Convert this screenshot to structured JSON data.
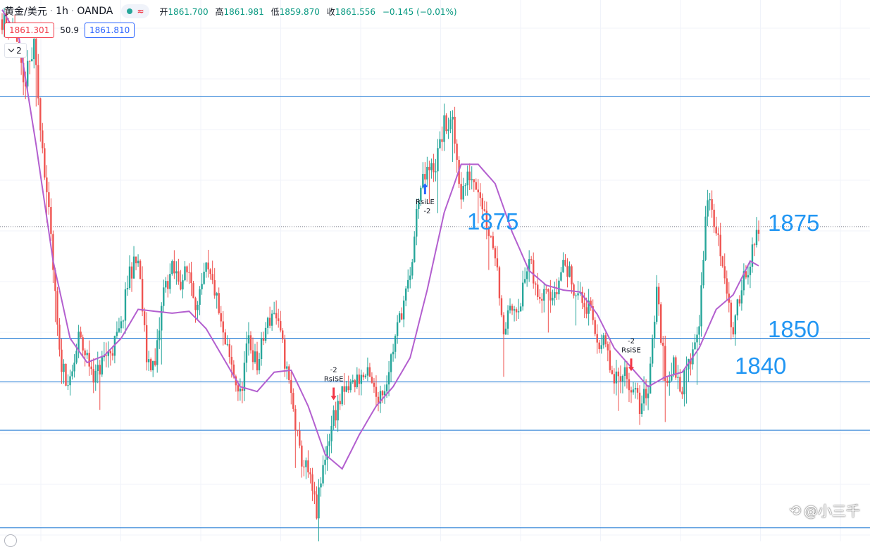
{
  "header": {
    "symbol": "黄金/美元",
    "interval": "1h",
    "broker": "OANDA",
    "status_icon": "wave-icon",
    "open_label": "开",
    "open": "1861.700",
    "high_label": "高",
    "high": "1861.981",
    "low_label": "低",
    "low": "1859.870",
    "close_label": "收",
    "close": "1861.556",
    "change": "−0.145 (−0.01%)"
  },
  "quote": {
    "sell": "1861.301",
    "spread": "50.9",
    "buy": "1861.810"
  },
  "indicator_toggle": {
    "count": "2"
  },
  "watermark": "@小三千",
  "colors": {
    "up": "#26a69a",
    "down": "#ef5350",
    "ma": "#b35fcf",
    "level_line": "#1976d2",
    "level_text": "#2196f3",
    "signal_sell": "#f23645",
    "signal_buy": "#2962ff"
  },
  "chart_data": {
    "type": "candlestick",
    "symbol": "XAU/USD",
    "timeframe": "1h",
    "y_range": [
      1829,
      1885
    ],
    "current_price": 1861.556,
    "horizontal_levels": [
      {
        "price": 1875,
        "label": "1875"
      },
      {
        "price": 1850,
        "label": "1850"
      },
      {
        "price": 1845.5,
        "label": "1840"
      },
      {
        "price": 1840.5,
        "label": ""
      },
      {
        "price": 1830.4,
        "label": ""
      }
    ],
    "level_labels": [
      {
        "text": "1875",
        "price": 1875
      },
      {
        "text": "1875",
        "price": 1875
      },
      {
        "text": "1850",
        "price": 1850
      },
      {
        "text": "1840",
        "price": 1845.5
      }
    ],
    "close_path": [
      [
        0,
        1883
      ],
      [
        6,
        1882
      ],
      [
        10,
        1876
      ],
      [
        15,
        1880
      ],
      [
        19,
        1870
      ],
      [
        23,
        1860
      ],
      [
        27,
        1848
      ],
      [
        32,
        1845
      ],
      [
        36,
        1850
      ],
      [
        40,
        1848
      ],
      [
        44,
        1846
      ],
      [
        48,
        1848
      ],
      [
        52,
        1849
      ],
      [
        56,
        1851
      ],
      [
        60,
        1857
      ],
      [
        64,
        1858
      ],
      [
        68,
        1848
      ],
      [
        72,
        1847
      ],
      [
        76,
        1855
      ],
      [
        80,
        1857
      ],
      [
        84,
        1856
      ],
      [
        88,
        1857
      ],
      [
        92,
        1853
      ],
      [
        96,
        1857
      ],
      [
        100,
        1855
      ],
      [
        104,
        1850
      ],
      [
        108,
        1847
      ],
      [
        112,
        1844
      ],
      [
        116,
        1850
      ],
      [
        120,
        1847
      ],
      [
        124,
        1851
      ],
      [
        128,
        1853
      ],
      [
        132,
        1849
      ],
      [
        136,
        1844
      ],
      [
        140,
        1838
      ],
      [
        144,
        1836
      ],
      [
        148,
        1832
      ],
      [
        152,
        1838
      ],
      [
        156,
        1842
      ],
      [
        160,
        1844
      ],
      [
        164,
        1845
      ],
      [
        168,
        1846
      ],
      [
        172,
        1846
      ],
      [
        176,
        1844
      ],
      [
        180,
        1845
      ],
      [
        184,
        1849
      ],
      [
        188,
        1853
      ],
      [
        192,
        1856
      ],
      [
        196,
        1865
      ],
      [
        200,
        1867
      ],
      [
        204,
        1868
      ],
      [
        208,
        1872
      ],
      [
        212,
        1872
      ],
      [
        216,
        1865
      ],
      [
        220,
        1867
      ],
      [
        224,
        1866
      ],
      [
        228,
        1862
      ],
      [
        232,
        1859
      ],
      [
        236,
        1851
      ],
      [
        240,
        1853
      ],
      [
        244,
        1854
      ],
      [
        248,
        1858
      ],
      [
        252,
        1854
      ],
      [
        256,
        1856
      ],
      [
        260,
        1854
      ],
      [
        264,
        1858
      ],
      [
        268,
        1856
      ],
      [
        272,
        1854
      ],
      [
        276,
        1853
      ],
      [
        280,
        1850
      ],
      [
        284,
        1849
      ],
      [
        288,
        1845
      ],
      [
        292,
        1847
      ],
      [
        296,
        1845
      ],
      [
        300,
        1843
      ],
      [
        304,
        1845
      ],
      [
        308,
        1855
      ],
      [
        312,
        1846
      ],
      [
        316,
        1847
      ],
      [
        320,
        1845
      ],
      [
        324,
        1848
      ],
      [
        328,
        1852
      ],
      [
        332,
        1865
      ],
      [
        336,
        1861
      ],
      [
        340,
        1857
      ],
      [
        344,
        1850
      ],
      [
        348,
        1856
      ],
      [
        352,
        1858
      ],
      [
        356,
        1861
      ]
    ],
    "moving_average": {
      "color": "#b35fcf",
      "values": [
        [
          0,
          1884
        ],
        [
          8,
          1881
        ],
        [
          16,
          1870
        ],
        [
          24,
          1858
        ],
        [
          32,
          1850
        ],
        [
          40,
          1847.5
        ],
        [
          48,
          1848.2
        ],
        [
          56,
          1850
        ],
        [
          64,
          1853
        ],
        [
          72,
          1852.8
        ],
        [
          80,
          1852.6
        ],
        [
          88,
          1852.8
        ],
        [
          96,
          1851
        ],
        [
          104,
          1848
        ],
        [
          112,
          1845
        ],
        [
          120,
          1844.5
        ],
        [
          128,
          1846.5
        ],
        [
          136,
          1846.7
        ],
        [
          144,
          1843
        ],
        [
          152,
          1838
        ],
        [
          160,
          1836.5
        ],
        [
          168,
          1840
        ],
        [
          176,
          1843
        ],
        [
          184,
          1845
        ],
        [
          192,
          1848
        ],
        [
          200,
          1855
        ],
        [
          208,
          1863
        ],
        [
          216,
          1868
        ],
        [
          224,
          1868
        ],
        [
          232,
          1866
        ],
        [
          240,
          1861
        ],
        [
          248,
          1857
        ],
        [
          256,
          1855.5
        ],
        [
          264,
          1855
        ],
        [
          272,
          1854.8
        ],
        [
          280,
          1852.5
        ],
        [
          288,
          1849
        ],
        [
          296,
          1847
        ],
        [
          304,
          1845
        ],
        [
          312,
          1846
        ],
        [
          320,
          1846.5
        ],
        [
          328,
          1849
        ],
        [
          336,
          1853
        ],
        [
          344,
          1854.5
        ],
        [
          352,
          1858
        ],
        [
          356,
          1857.5
        ]
      ]
    },
    "signals": [
      {
        "type": "sell",
        "name": "RsiSE",
        "qty": "-2",
        "index": 156
      },
      {
        "type": "buy",
        "name": "RsiLE",
        "qty": "-2",
        "index": 199
      },
      {
        "type": "sell",
        "name": "RsiSE",
        "qty": "-2",
        "index": 296
      }
    ],
    "grid": true
  }
}
